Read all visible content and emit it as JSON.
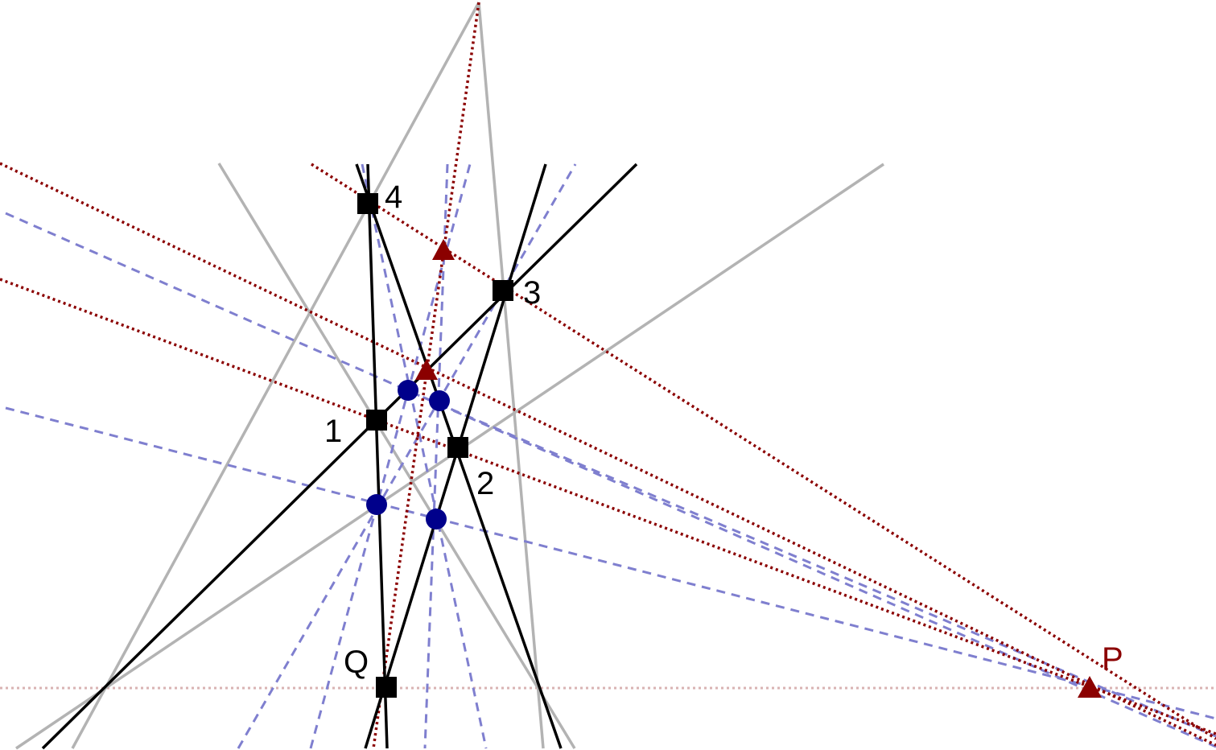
{
  "colors": {
    "gray_line": "#b3b3b3",
    "black_line": "#000000",
    "blue_dashed": "#7f7fcf",
    "red_dotted": "#8b0000",
    "horizon_dotted": "#d9b3b3",
    "blue_point": "#00008b",
    "red_point": "#8b0000",
    "square_point": "#000000"
  },
  "labels": {
    "p1": "1",
    "p2": "2",
    "p3": "3",
    "p4": "4",
    "q": "Q",
    "p": "P"
  }
}
